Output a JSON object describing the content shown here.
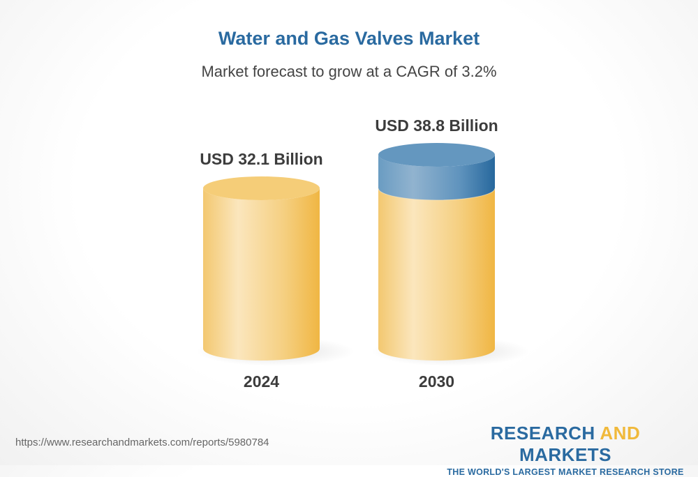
{
  "chart_data": {
    "type": "bar",
    "style": "3d-cylinder",
    "title": "Water and Gas Valves Market",
    "subtitle": "Market forecast to grow at a CAGR of 3.2%",
    "categories": [
      "2024",
      "2030"
    ],
    "values": [
      32.1,
      38.8
    ],
    "value_labels": [
      "USD 32.1 Billion",
      "USD 38.8 Billion"
    ],
    "unit": "USD Billion",
    "grid": false,
    "colors": {
      "base": "#f2c160",
      "growth": "#3a78aa",
      "title": "#2a6aa0"
    }
  },
  "footer": {
    "url": "https://www.researchandmarkets.com/reports/5980784",
    "logo_line1_a": "RESEARCH ",
    "logo_line1_b": "AND",
    "logo_line1_c": " MARKETS",
    "logo_line2": "THE WORLD'S LARGEST MARKET RESEARCH STORE"
  }
}
